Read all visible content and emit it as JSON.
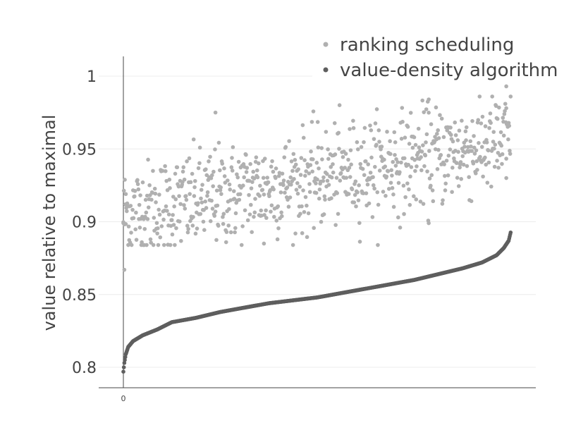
{
  "chart_data": {
    "type": "scatter",
    "title": "",
    "xlabel": "",
    "ylabel": "value relative to maximal",
    "xlim": [
      -50,
      840
    ],
    "ylim": [
      0.785,
      1.015
    ],
    "x_ticks": [
      {
        "value": 0,
        "label": "0"
      }
    ],
    "y_ticks": [
      {
        "value": 0.8,
        "label": "0.8"
      },
      {
        "value": 0.85,
        "label": "0.85"
      },
      {
        "value": 0.9,
        "label": "0.9"
      },
      {
        "value": 0.95,
        "label": "0.95"
      },
      {
        "value": 1.0,
        "label": "1"
      }
    ],
    "grid": true,
    "legend_position": "top-right",
    "point_count": 800,
    "series": [
      {
        "name": "ranking scheduling",
        "color": "#b0b0b0",
        "description": "noisy scatter, trend rising from about 0.905 at x=0 to about 0.955 at x=800",
        "trend_start": 0.905,
        "trend_end": 0.955,
        "spread": 0.02,
        "sample_points": [
          {
            "x": 0,
            "y": 0.899
          },
          {
            "x": 2,
            "y": 0.867
          },
          {
            "x": 5,
            "y": 0.919
          },
          {
            "x": 190,
            "y": 0.975
          },
          {
            "x": 290,
            "y": 0.885
          },
          {
            "x": 630,
            "y": 0.899
          },
          {
            "x": 630,
            "y": 0.984
          },
          {
            "x": 790,
            "y": 0.993
          },
          {
            "x": 790,
            "y": 0.978
          },
          {
            "x": 790,
            "y": 0.93
          }
        ]
      },
      {
        "name": "value-density algorithm",
        "color": "#5e5e5e",
        "description": "sorted ascending curve",
        "curve_points": [
          {
            "x": 0,
            "y": 0.797
          },
          {
            "x": 2,
            "y": 0.803
          },
          {
            "x": 5,
            "y": 0.809
          },
          {
            "x": 10,
            "y": 0.814
          },
          {
            "x": 20,
            "y": 0.818
          },
          {
            "x": 40,
            "y": 0.822
          },
          {
            "x": 70,
            "y": 0.826
          },
          {
            "x": 100,
            "y": 0.831
          },
          {
            "x": 150,
            "y": 0.834
          },
          {
            "x": 200,
            "y": 0.838
          },
          {
            "x": 250,
            "y": 0.841
          },
          {
            "x": 300,
            "y": 0.844
          },
          {
            "x": 350,
            "y": 0.846
          },
          {
            "x": 400,
            "y": 0.848
          },
          {
            "x": 450,
            "y": 0.851
          },
          {
            "x": 500,
            "y": 0.854
          },
          {
            "x": 550,
            "y": 0.857
          },
          {
            "x": 600,
            "y": 0.86
          },
          {
            "x": 650,
            "y": 0.864
          },
          {
            "x": 700,
            "y": 0.868
          },
          {
            "x": 740,
            "y": 0.872
          },
          {
            "x": 770,
            "y": 0.877
          },
          {
            "x": 785,
            "y": 0.882
          },
          {
            "x": 795,
            "y": 0.887
          },
          {
            "x": 800,
            "y": 0.894
          }
        ]
      }
    ]
  }
}
